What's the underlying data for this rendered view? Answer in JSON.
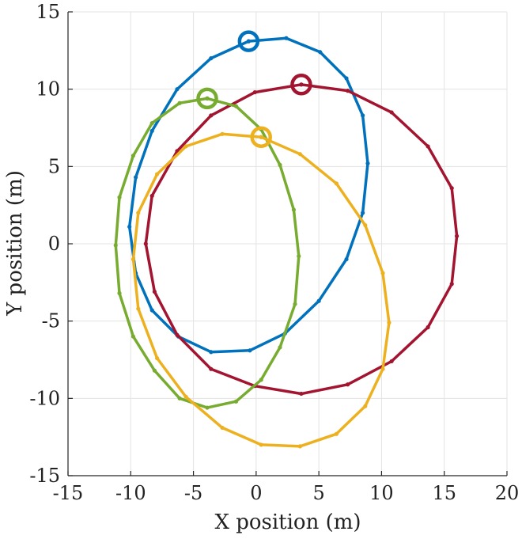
{
  "chart_data": {
    "type": "line",
    "title": "",
    "xlabel": "X position (m)",
    "ylabel": "Y position (m)",
    "xlim": [
      -15,
      20
    ],
    "ylim": [
      -15,
      15
    ],
    "xticks": [
      -15,
      -10,
      -5,
      0,
      5,
      10,
      15,
      20
    ],
    "yticks": [
      -15,
      -10,
      -5,
      0,
      5,
      10,
      15
    ],
    "grid": true,
    "legend": "none",
    "series": [
      {
        "name": "blue",
        "color": "#0072BD",
        "start": [
          -0.6,
          13.1
        ],
        "points": [
          [
            -0.6,
            13.1
          ],
          [
            2.4,
            13.3
          ],
          [
            5.1,
            12.4
          ],
          [
            7.2,
            10.7
          ],
          [
            8.5,
            8.3
          ],
          [
            8.9,
            5.2
          ],
          [
            8.5,
            2.0
          ],
          [
            7.2,
            -1.0
          ],
          [
            5.0,
            -3.7
          ],
          [
            2.3,
            -5.8
          ],
          [
            -0.5,
            -6.9
          ],
          [
            -3.6,
            -7.0
          ],
          [
            -6.2,
            -6.0
          ],
          [
            -8.3,
            -4.3
          ],
          [
            -9.6,
            -1.9
          ],
          [
            -10.1,
            1.1
          ],
          [
            -9.6,
            4.3
          ],
          [
            -8.3,
            7.3
          ],
          [
            -6.3,
            10.0
          ],
          [
            -3.6,
            12.0
          ],
          [
            -0.6,
            13.1
          ]
        ]
      },
      {
        "name": "red",
        "color": "#A2142F",
        "start": [
          3.6,
          10.3
        ],
        "points": [
          [
            3.6,
            10.3
          ],
          [
            7.3,
            9.9
          ],
          [
            10.8,
            8.5
          ],
          [
            13.7,
            6.3
          ],
          [
            15.6,
            3.6
          ],
          [
            16.0,
            0.5
          ],
          [
            15.6,
            -2.6
          ],
          [
            13.7,
            -5.4
          ],
          [
            10.8,
            -7.6
          ],
          [
            7.3,
            -9.1
          ],
          [
            3.6,
            -9.7
          ],
          [
            -0.1,
            -9.2
          ],
          [
            -3.6,
            -8.1
          ],
          [
            -6.3,
            -5.9
          ],
          [
            -8.1,
            -3.1
          ],
          [
            -8.8,
            0.0
          ],
          [
            -8.3,
            3.1
          ],
          [
            -6.3,
            6.0
          ],
          [
            -3.6,
            8.3
          ],
          [
            -0.1,
            9.8
          ],
          [
            3.6,
            10.3
          ]
        ]
      },
      {
        "name": "green",
        "color": "#77AC30",
        "start": [
          -3.9,
          9.4
        ],
        "points": [
          [
            -3.9,
            9.4
          ],
          [
            -1.6,
            8.9
          ],
          [
            0.4,
            7.4
          ],
          [
            1.9,
            5.1
          ],
          [
            3.0,
            2.2
          ],
          [
            3.4,
            -0.8
          ],
          [
            3.1,
            -3.9
          ],
          [
            1.9,
            -6.7
          ],
          [
            0.4,
            -8.8
          ],
          [
            -1.6,
            -10.2
          ],
          [
            -3.9,
            -10.6
          ],
          [
            -6.1,
            -10.0
          ],
          [
            -8.1,
            -8.2
          ],
          [
            -9.8,
            -6.0
          ],
          [
            -10.9,
            -3.2
          ],
          [
            -11.2,
            -0.1
          ],
          [
            -10.9,
            3.0
          ],
          [
            -9.8,
            5.7
          ],
          [
            -8.3,
            7.8
          ],
          [
            -6.1,
            9.1
          ],
          [
            -3.9,
            9.4
          ]
        ]
      },
      {
        "name": "yellow",
        "color": "#EDB120",
        "start": [
          0.4,
          6.9
        ],
        "points": [
          [
            0.4,
            6.9
          ],
          [
            3.5,
            5.8
          ],
          [
            6.4,
            3.9
          ],
          [
            8.7,
            1.2
          ],
          [
            10.1,
            -1.9
          ],
          [
            10.6,
            -5.1
          ],
          [
            10.1,
            -8.1
          ],
          [
            8.7,
            -10.5
          ],
          [
            6.4,
            -12.3
          ],
          [
            3.5,
            -13.1
          ],
          [
            0.4,
            -13.0
          ],
          [
            -2.7,
            -11.9
          ],
          [
            -5.6,
            -9.9
          ],
          [
            -7.9,
            -7.4
          ],
          [
            -9.4,
            -4.2
          ],
          [
            -9.8,
            -1.0
          ],
          [
            -9.4,
            2.0
          ],
          [
            -7.9,
            4.5
          ],
          [
            -5.6,
            6.3
          ],
          [
            -2.7,
            7.1
          ],
          [
            0.4,
            6.9
          ]
        ]
      }
    ]
  }
}
